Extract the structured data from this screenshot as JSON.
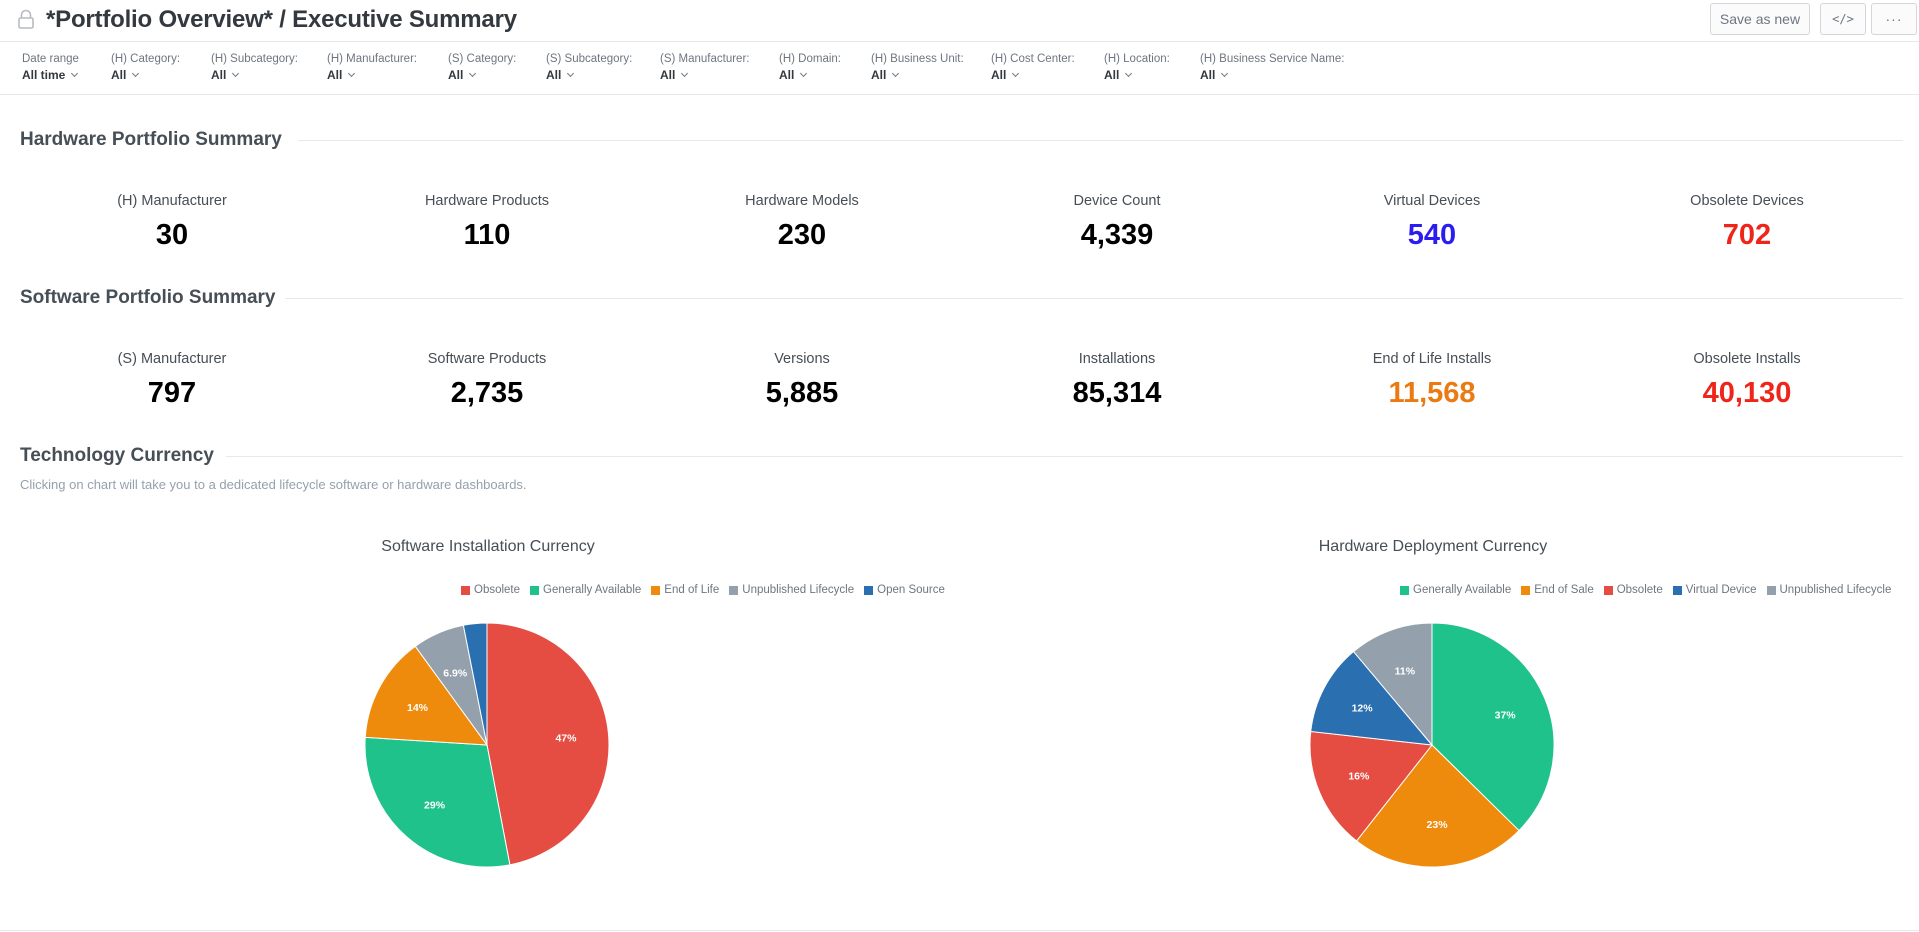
{
  "header": {
    "title": "*Portfolio Overview* / Executive Summary",
    "save_label": "Save as new",
    "embed_label": "</>",
    "more_label": "···"
  },
  "filters": [
    {
      "label": "Date range",
      "value": "All time"
    },
    {
      "label": "(H) Category:",
      "value": "All"
    },
    {
      "label": "(H) Subcategory:",
      "value": "All"
    },
    {
      "label": "(H) Manufacturer:",
      "value": "All"
    },
    {
      "label": "(S) Category:",
      "value": "All"
    },
    {
      "label": "(S) Subcategory:",
      "value": "All"
    },
    {
      "label": "(S) Manufacturer:",
      "value": "All"
    },
    {
      "label": "(H) Domain:",
      "value": "All"
    },
    {
      "label": "(H) Business Unit:",
      "value": "All"
    },
    {
      "label": "(H) Cost Center:",
      "value": "All"
    },
    {
      "label": "(H) Location:",
      "value": "All"
    },
    {
      "label": "(H) Business Service Name:",
      "value": "All"
    }
  ],
  "hardware": {
    "title": "Hardware Portfolio Summary",
    "kpis": [
      {
        "label": "(H) Manufacturer",
        "value": "30",
        "color": "#000000"
      },
      {
        "label": "Hardware Products",
        "value": "110",
        "color": "#000000"
      },
      {
        "label": "Hardware Models",
        "value": "230",
        "color": "#000000"
      },
      {
        "label": "Device Count",
        "value": "4,339",
        "color": "#000000"
      },
      {
        "label": "Virtual Devices",
        "value": "540",
        "color": "#2b1df0"
      },
      {
        "label": "Obsolete Devices",
        "value": "702",
        "color": "#f0251a"
      }
    ]
  },
  "software": {
    "title": "Software Portfolio Summary",
    "kpis": [
      {
        "label": "(S) Manufacturer",
        "value": "797",
        "color": "#000000"
      },
      {
        "label": "Software Products",
        "value": "2,735",
        "color": "#000000"
      },
      {
        "label": "Versions",
        "value": "5,885",
        "color": "#000000"
      },
      {
        "label": "Installations",
        "value": "85,314",
        "color": "#000000"
      },
      {
        "label": "End of Life Installs",
        "value": "11,568",
        "color": "#ec7a13"
      },
      {
        "label": "Obsolete Installs",
        "value": "40,130",
        "color": "#f0251a"
      }
    ]
  },
  "technology": {
    "title": "Technology Currency",
    "subtitle": "Clicking on chart will take you to a dedicated lifecycle software or hardware dashboards."
  },
  "chart_data": [
    {
      "type": "pie",
      "title": "Software Installation Currency",
      "legend_position": "top",
      "slices": [
        {
          "name": "Obsolete",
          "value": 47,
          "label": "47%",
          "color": "#e54d42"
        },
        {
          "name": "Generally Available",
          "value": 29,
          "label": "29%",
          "color": "#20c28c"
        },
        {
          "name": "End of Life",
          "value": 14,
          "label": "14%",
          "color": "#ef8b0c"
        },
        {
          "name": "Unpublished Lifecycle",
          "value": 6.9,
          "label": "6.9%",
          "color": "#94a1ad"
        },
        {
          "name": "Open Source",
          "value": 3.1,
          "label": "",
          "color": "#2a6fb0"
        }
      ]
    },
    {
      "type": "pie",
      "title": "Hardware Deployment Currency",
      "legend_position": "top",
      "slices": [
        {
          "name": "Generally Available",
          "value": 37,
          "label": "37%",
          "color": "#20c28c"
        },
        {
          "name": "End of Sale",
          "value": 23,
          "label": "23%",
          "color": "#ef8b0c"
        },
        {
          "name": "Obsolete",
          "value": 16,
          "label": "16%",
          "color": "#e54d42"
        },
        {
          "name": "Virtual Device",
          "value": 12,
          "label": "12%",
          "color": "#2a6fb0"
        },
        {
          "name": "Unpublished Lifecycle",
          "value": 11,
          "label": "11%",
          "color": "#94a1ad"
        }
      ]
    }
  ]
}
